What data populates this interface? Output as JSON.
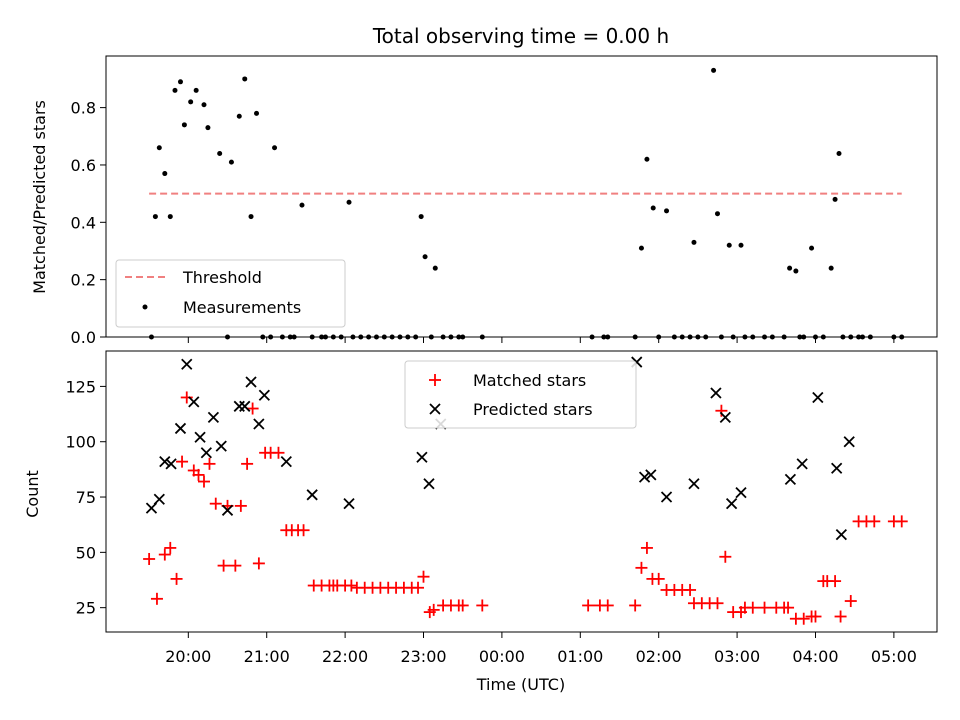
{
  "chart_data": {
    "title": "Total observing time = 0.00 h",
    "xlabel": "Time (UTC)",
    "x_tick_labels": [
      "20:00",
      "21:00",
      "22:00",
      "23:00",
      "00:00",
      "01:00",
      "02:00",
      "03:00",
      "04:00",
      "05:00"
    ],
    "xlim_hours": [
      18.95,
      29.55
    ],
    "panels": [
      {
        "type": "scatter",
        "ylabel": "Matched/Predicted stars",
        "ylim": [
          0,
          0.98
        ],
        "yticks": [
          0.0,
          0.2,
          0.4,
          0.6,
          0.8
        ],
        "y_tick_labels": [
          "0.0",
          "0.2",
          "0.4",
          "0.6",
          "0.8"
        ],
        "legend": {
          "position": "lower-left",
          "entries": [
            "Threshold",
            "Measurements"
          ]
        },
        "threshold": {
          "name": "Threshold",
          "value": 0.5,
          "x_range": [
            19.5,
            29.1
          ],
          "color": "#f08080"
        },
        "series": [
          {
            "name": "Measurements",
            "color": "#000000",
            "marker": "dot",
            "x": [
              19.53,
              19.58,
              19.63,
              19.7,
              19.77,
              19.83,
              19.9,
              19.95,
              20.03,
              20.1,
              20.2,
              20.25,
              20.4,
              20.5,
              20.55,
              20.65,
              20.72,
              20.8,
              20.87,
              20.95,
              21.05,
              21.1,
              21.2,
              21.3,
              21.35,
              21.45,
              21.58,
              21.7,
              21.75,
              21.85,
              21.95,
              22.05,
              22.1,
              22.2,
              22.3,
              22.4,
              22.5,
              22.6,
              22.7,
              22.8,
              22.9,
              22.97,
              23.02,
              23.1,
              23.15,
              23.25,
              23.35,
              23.45,
              23.5,
              23.75,
              25.15,
              25.3,
              25.35,
              25.7,
              25.78,
              25.85,
              25.93,
              26.0,
              26.1,
              26.2,
              26.3,
              26.4,
              26.45,
              26.5,
              26.6,
              26.7,
              26.75,
              26.8,
              26.9,
              26.95,
              27.05,
              27.1,
              27.2,
              27.35,
              27.45,
              27.6,
              27.67,
              27.75,
              27.8,
              27.85,
              27.95,
              28.0,
              28.1,
              28.2,
              28.25,
              28.3,
              28.35,
              28.45,
              28.55,
              28.6,
              28.7,
              29.0,
              29.1
            ],
            "y": [
              0,
              0.42,
              0.66,
              0.57,
              0.42,
              0.86,
              0.89,
              0.74,
              0.82,
              0.86,
              0.81,
              0.73,
              0.64,
              0,
              0.61,
              0.77,
              0.9,
              0.42,
              0.78,
              0,
              0,
              0.66,
              0,
              0,
              0,
              0.46,
              0,
              0,
              0,
              0,
              0,
              0.47,
              0,
              0,
              0,
              0,
              0,
              0,
              0,
              0,
              0,
              0.42,
              0.28,
              0,
              0.24,
              0,
              0,
              0,
              0,
              0,
              0,
              0,
              0,
              0,
              0.31,
              0.62,
              0.45,
              0,
              0.44,
              0,
              0,
              0,
              0.33,
              0,
              0,
              0.93,
              0.43,
              0,
              0.32,
              0,
              0.32,
              0,
              0,
              0,
              0,
              0,
              0.24,
              0.23,
              0,
              0,
              0.31,
              0,
              0,
              0.24,
              0.48,
              0.64,
              0,
              0,
              0,
              0,
              0,
              0,
              0
            ]
          }
        ]
      },
      {
        "type": "scatter",
        "ylabel": "Count",
        "ylim": [
          14,
          141
        ],
        "yticks": [
          25,
          50,
          75,
          100,
          125
        ],
        "y_tick_labels": [
          "25",
          "50",
          "75",
          "100",
          "125"
        ],
        "legend": {
          "position": "upper-center",
          "entries": [
            "Matched stars",
            "Predicted stars"
          ]
        },
        "series": [
          {
            "name": "Matched stars",
            "color": "#ff0000",
            "marker": "plus",
            "x": [
              19.5,
              19.6,
              19.7,
              19.77,
              19.85,
              19.92,
              19.98,
              20.07,
              20.13,
              20.2,
              20.27,
              20.35,
              20.45,
              20.5,
              20.6,
              20.67,
              20.75,
              20.82,
              20.9,
              20.98,
              21.05,
              21.15,
              21.25,
              21.32,
              21.4,
              21.47,
              21.6,
              21.7,
              21.8,
              21.85,
              21.9,
              22.0,
              22.08,
              22.15,
              22.25,
              22.35,
              22.45,
              22.55,
              22.65,
              22.75,
              22.85,
              22.93,
              23.0,
              23.08,
              23.13,
              23.25,
              23.35,
              23.45,
              23.5,
              23.75,
              25.1,
              25.25,
              25.35,
              25.7,
              25.78,
              25.85,
              25.92,
              26.0,
              26.1,
              26.2,
              26.3,
              26.4,
              26.45,
              26.55,
              26.65,
              26.75,
              26.8,
              26.85,
              26.95,
              27.05,
              27.1,
              27.2,
              27.35,
              27.5,
              27.6,
              27.65,
              27.75,
              27.85,
              27.95,
              28.0,
              28.1,
              28.15,
              28.25,
              28.32,
              28.45,
              28.55,
              28.65,
              28.75,
              29.0,
              29.1
            ],
            "y": [
              47,
              29,
              49,
              52,
              38,
              91,
              120,
              87,
              85,
              82,
              90,
              72,
              44,
              71,
              44,
              71,
              90,
              115,
              45,
              95,
              95,
              95,
              60,
              60,
              60,
              60,
              35,
              35,
              35,
              35,
              35,
              35,
              35,
              34,
              34,
              34,
              34,
              34,
              34,
              34,
              34,
              34,
              39,
              23,
              24,
              26,
              26,
              26,
              26,
              26,
              26,
              26,
              26,
              26,
              43,
              52,
              38,
              38,
              33,
              33,
              33,
              33,
              27,
              27,
              27,
              27,
              114,
              48,
              23,
              23,
              25,
              25,
              25,
              25,
              25,
              25,
              20,
              20,
              21,
              21,
              37,
              37,
              37,
              21,
              28,
              64,
              64,
              64,
              64,
              64
            ]
          },
          {
            "name": "Predicted stars",
            "color": "#000000",
            "marker": "x",
            "x": [
              19.53,
              19.63,
              19.7,
              19.78,
              19.9,
              19.98,
              20.07,
              20.15,
              20.23,
              20.32,
              20.42,
              20.5,
              20.65,
              20.72,
              20.8,
              20.9,
              20.97,
              21.25,
              21.58,
              22.05,
              22.98,
              23.07,
              23.22,
              25.72,
              25.82,
              25.9,
              26.1,
              26.45,
              26.73,
              26.85,
              26.93,
              27.05,
              27.68,
              27.83,
              28.03,
              28.27,
              28.33,
              28.43
            ],
            "y": [
              70,
              74,
              91,
              90,
              106,
              135,
              118,
              102,
              95,
              111,
              98,
              69,
              116,
              116,
              127,
              108,
              121,
              91,
              76,
              72,
              93,
              81,
              108,
              136,
              84,
              85,
              75,
              81,
              122,
              111,
              72,
              77,
              83,
              90,
              120,
              88,
              58,
              100
            ]
          }
        ]
      }
    ]
  }
}
